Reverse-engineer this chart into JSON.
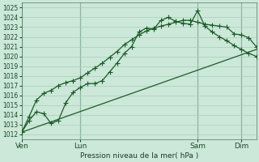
{
  "background_color": "#cce8d8",
  "grid_color": "#aacebb",
  "line_color": "#1a5c28",
  "title": "Pression niveau de la mer( hPa )",
  "ylim": [
    1011.5,
    1025.5
  ],
  "ytick_min": 1012,
  "ytick_max": 1025,
  "xlim": [
    0,
    96
  ],
  "xtick_positions": [
    0,
    24,
    72,
    90
  ],
  "xtick_labels": [
    "Ven",
    "Lun",
    "Sam",
    "Dim"
  ],
  "vline_positions": [
    0,
    24,
    72,
    90
  ],
  "series1_x": [
    0,
    3,
    6,
    9,
    12,
    15,
    18,
    21,
    24,
    27,
    30,
    33,
    36,
    39,
    42,
    45,
    48,
    51,
    54,
    57,
    60,
    63,
    66,
    69,
    72,
    75,
    78,
    81,
    84,
    87,
    90,
    93,
    96
  ],
  "series1_y": [
    1012.2,
    1013.4,
    1014.3,
    1014.1,
    1013.1,
    1013.4,
    1015.2,
    1016.3,
    1016.8,
    1017.2,
    1017.2,
    1017.5,
    1018.4,
    1019.3,
    1020.3,
    1021.0,
    1022.5,
    1022.9,
    1022.8,
    1023.7,
    1024.0,
    1023.6,
    1023.4,
    1023.3,
    1024.7,
    1023.1,
    1022.5,
    1022.0,
    1021.6,
    1021.1,
    1020.7,
    1020.3,
    1020.0
  ],
  "series2_x": [
    0,
    3,
    6,
    9,
    12,
    15,
    18,
    21,
    24,
    27,
    30,
    33,
    36,
    39,
    42,
    45,
    48,
    51,
    54,
    57,
    60,
    63,
    66,
    69,
    72,
    75,
    78,
    81,
    84,
    87,
    90,
    93,
    96
  ],
  "series2_y": [
    1012.2,
    1013.8,
    1015.5,
    1016.2,
    1016.5,
    1017.0,
    1017.3,
    1017.5,
    1017.8,
    1018.3,
    1018.8,
    1019.3,
    1019.9,
    1020.5,
    1021.2,
    1021.7,
    1022.2,
    1022.6,
    1022.9,
    1023.1,
    1023.3,
    1023.5,
    1023.7,
    1023.7,
    1023.5,
    1023.3,
    1023.2,
    1023.1,
    1023.0,
    1022.3,
    1022.2,
    1021.9,
    1021.0
  ],
  "series3_x": [
    0,
    96
  ],
  "series3_y": [
    1012.2,
    1020.7
  ],
  "marker": "+",
  "markersize": 4,
  "linewidth": 0.9
}
